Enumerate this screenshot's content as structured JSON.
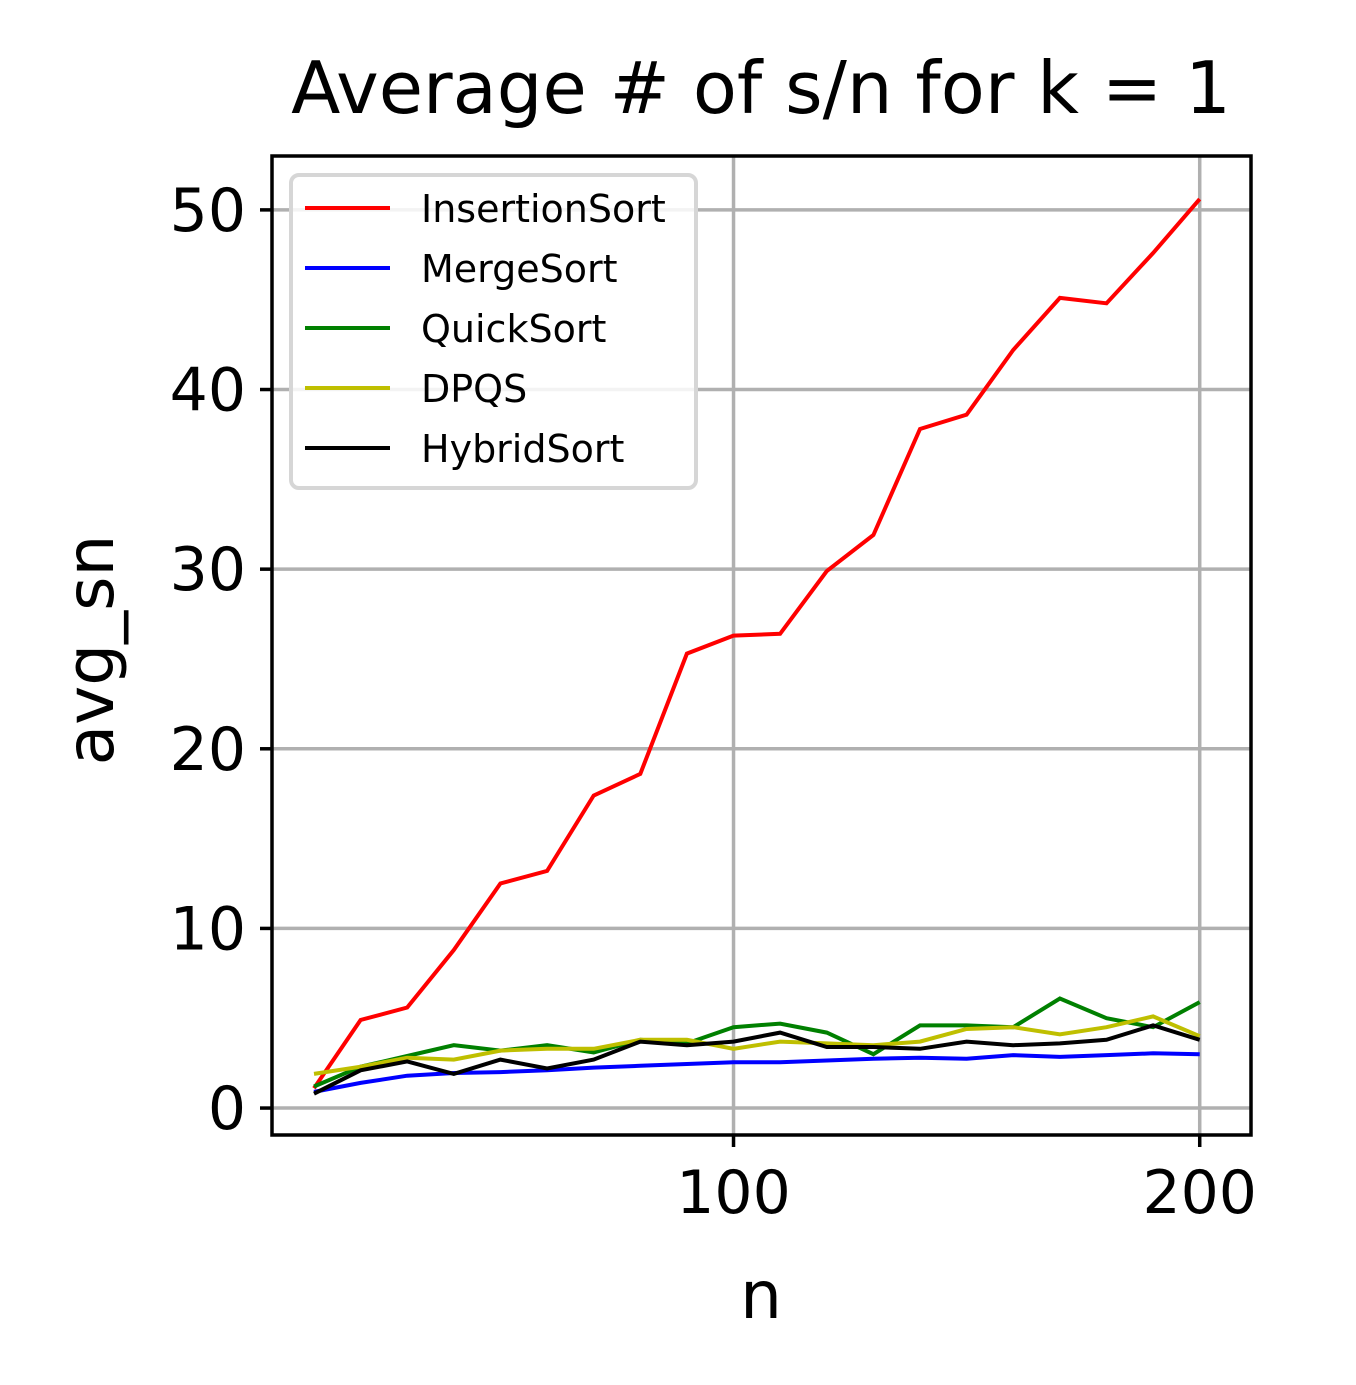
{
  "chart_data": {
    "type": "line",
    "title": "Average # of s/n for k = 1",
    "xlabel": "n",
    "ylabel": "avg_sn",
    "xlim": [
      1,
      211
    ],
    "ylim": [
      -1.5,
      53
    ],
    "xticks": [
      100,
      200
    ],
    "yticks": [
      0,
      10,
      20,
      30,
      40,
      50
    ],
    "grid": true,
    "legend_position": "top-left",
    "x": [
      10,
      20,
      30,
      40,
      50,
      60,
      70,
      80,
      90,
      100,
      110,
      120,
      130,
      140,
      150,
      160,
      170,
      180,
      190,
      200
    ],
    "series": [
      {
        "name": "InsertionSort",
        "color": "#ff0000",
        "values": [
          1.1,
          4.9,
          5.6,
          8.8,
          12.5,
          13.2,
          17.4,
          18.6,
          25.3,
          26.3,
          26.4,
          29.9,
          31.9,
          37.8,
          38.6,
          42.2,
          45.1,
          44.8,
          47.6,
          50.6
        ]
      },
      {
        "name": "MergeSort",
        "color": "#0000ff",
        "values": [
          0.9,
          1.4,
          1.8,
          1.95,
          2.0,
          2.1,
          2.25,
          2.35,
          2.45,
          2.55,
          2.55,
          2.65,
          2.75,
          2.8,
          2.75,
          2.95,
          2.85,
          2.95,
          3.05,
          3.0
        ]
      },
      {
        "name": "QuickSort",
        "color": "#008000",
        "values": [
          1.2,
          2.3,
          2.9,
          3.5,
          3.2,
          3.5,
          3.1,
          3.8,
          3.6,
          4.5,
          4.7,
          4.2,
          3.0,
          4.6,
          4.6,
          4.5,
          6.1,
          5.0,
          4.5,
          5.9
        ]
      },
      {
        "name": "DPQS",
        "color": "#bfbf00",
        "values": [
          1.9,
          2.3,
          2.8,
          2.7,
          3.2,
          3.3,
          3.3,
          3.8,
          3.8,
          3.3,
          3.7,
          3.6,
          3.5,
          3.7,
          4.4,
          4.5,
          4.1,
          4.5,
          5.1,
          4.0
        ]
      },
      {
        "name": "HybridSort",
        "color": "#000000",
        "values": [
          0.8,
          2.1,
          2.6,
          1.9,
          2.7,
          2.2,
          2.7,
          3.7,
          3.5,
          3.7,
          4.2,
          3.4,
          3.4,
          3.3,
          3.7,
          3.5,
          3.6,
          3.8,
          4.6,
          3.8
        ]
      }
    ]
  }
}
